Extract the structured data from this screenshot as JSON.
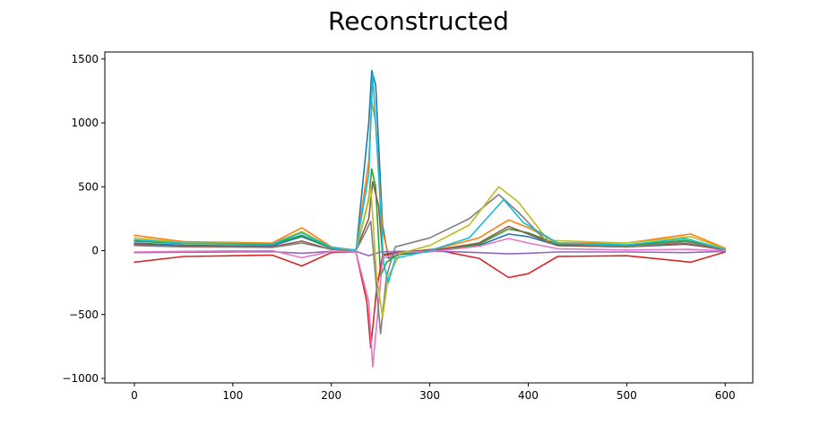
{
  "chart_data": {
    "type": "line",
    "title": "Reconstructed",
    "xlabel": "",
    "ylabel": "",
    "xlim": [
      -30,
      628
    ],
    "ylim": [
      -1035,
      1555
    ],
    "xticks": [
      0,
      100,
      200,
      300,
      400,
      500,
      600
    ],
    "yticks": [
      -1000,
      -500,
      0,
      500,
      1000,
      1500
    ],
    "xtick_labels": [
      "0",
      "100",
      "200",
      "300",
      "400",
      "500",
      "600"
    ],
    "ytick_labels": [
      "−1000",
      "−500",
      "0",
      "500",
      "1000",
      "1500"
    ],
    "grid": false,
    "legend": "none",
    "series": [
      {
        "color": "#1f77b4",
        "points": [
          [
            0,
            60
          ],
          [
            50,
            42
          ],
          [
            100,
            38
          ],
          [
            140,
            38
          ],
          [
            170,
            110
          ],
          [
            200,
            20
          ],
          [
            225,
            -10
          ],
          [
            238,
            1000
          ],
          [
            241,
            1410
          ],
          [
            245,
            1300
          ],
          [
            252,
            200
          ],
          [
            258,
            -60
          ],
          [
            270,
            -30
          ],
          [
            310,
            0
          ],
          [
            350,
            40
          ],
          [
            380,
            130
          ],
          [
            400,
            110
          ],
          [
            430,
            40
          ],
          [
            500,
            30
          ],
          [
            560,
            50
          ],
          [
            600,
            10
          ]
        ]
      },
      {
        "color": "#ff7f0e",
        "points": [
          [
            0,
            120
          ],
          [
            50,
            70
          ],
          [
            100,
            65
          ],
          [
            140,
            60
          ],
          [
            170,
            180
          ],
          [
            200,
            30
          ],
          [
            225,
            0
          ],
          [
            238,
            700
          ],
          [
            241,
            1170
          ],
          [
            245,
            1000
          ],
          [
            252,
            150
          ],
          [
            258,
            -30
          ],
          [
            270,
            -20
          ],
          [
            310,
            20
          ],
          [
            350,
            100
          ],
          [
            380,
            240
          ],
          [
            400,
            180
          ],
          [
            430,
            60
          ],
          [
            500,
            60
          ],
          [
            565,
            130
          ],
          [
            600,
            20
          ]
        ]
      },
      {
        "color": "#2ca02c",
        "points": [
          [
            0,
            75
          ],
          [
            50,
            55
          ],
          [
            100,
            52
          ],
          [
            140,
            50
          ],
          [
            170,
            120
          ],
          [
            200,
            20
          ],
          [
            225,
            0
          ],
          [
            238,
            400
          ],
          [
            241,
            640
          ],
          [
            245,
            500
          ],
          [
            250,
            -200
          ],
          [
            256,
            -90
          ],
          [
            270,
            -20
          ],
          [
            310,
            0
          ],
          [
            350,
            50
          ],
          [
            380,
            170
          ],
          [
            400,
            140
          ],
          [
            430,
            50
          ],
          [
            500,
            40
          ],
          [
            560,
            80
          ],
          [
            600,
            10
          ]
        ]
      },
      {
        "color": "#d62728",
        "points": [
          [
            0,
            -90
          ],
          [
            50,
            -45
          ],
          [
            100,
            -40
          ],
          [
            140,
            -35
          ],
          [
            170,
            -120
          ],
          [
            200,
            -15
          ],
          [
            225,
            -10
          ],
          [
            236,
            -400
          ],
          [
            240,
            -760
          ],
          [
            246,
            -300
          ],
          [
            252,
            -40
          ],
          [
            270,
            -10
          ],
          [
            310,
            0
          ],
          [
            350,
            -60
          ],
          [
            380,
            -210
          ],
          [
            400,
            -180
          ],
          [
            430,
            -45
          ],
          [
            500,
            -40
          ],
          [
            565,
            -90
          ],
          [
            600,
            -10
          ]
        ]
      },
      {
        "color": "#9467bd",
        "points": [
          [
            0,
            -15
          ],
          [
            50,
            -12
          ],
          [
            100,
            -10
          ],
          [
            140,
            -8
          ],
          [
            170,
            -20
          ],
          [
            200,
            -5
          ],
          [
            225,
            -5
          ],
          [
            238,
            -40
          ],
          [
            242,
            -30
          ],
          [
            250,
            -10
          ],
          [
            270,
            -5
          ],
          [
            310,
            -5
          ],
          [
            350,
            -15
          ],
          [
            380,
            -25
          ],
          [
            400,
            -20
          ],
          [
            430,
            -10
          ],
          [
            500,
            -10
          ],
          [
            560,
            -15
          ],
          [
            600,
            -5
          ]
        ]
      },
      {
        "color": "#8c564b",
        "points": [
          [
            0,
            50
          ],
          [
            50,
            35
          ],
          [
            100,
            32
          ],
          [
            140,
            30
          ],
          [
            170,
            75
          ],
          [
            200,
            10
          ],
          [
            225,
            5
          ],
          [
            238,
            250
          ],
          [
            242,
            540
          ],
          [
            248,
            350
          ],
          [
            252,
            -30
          ],
          [
            270,
            -10
          ],
          [
            310,
            10
          ],
          [
            350,
            60
          ],
          [
            380,
            190
          ],
          [
            400,
            130
          ],
          [
            430,
            40
          ],
          [
            500,
            30
          ],
          [
            560,
            55
          ],
          [
            600,
            5
          ]
        ]
      },
      {
        "color": "#e377c2",
        "points": [
          [
            0,
            -10
          ],
          [
            50,
            -5
          ],
          [
            100,
            -2
          ],
          [
            140,
            0
          ],
          [
            170,
            -55
          ],
          [
            200,
            -5
          ],
          [
            225,
            -10
          ],
          [
            238,
            -400
          ],
          [
            242,
            -910
          ],
          [
            247,
            -500
          ],
          [
            252,
            -60
          ],
          [
            270,
            -15
          ],
          [
            310,
            0
          ],
          [
            350,
            35
          ],
          [
            380,
            95
          ],
          [
            400,
            60
          ],
          [
            430,
            15
          ],
          [
            500,
            5
          ],
          [
            560,
            10
          ],
          [
            600,
            0
          ]
        ]
      },
      {
        "color": "#7f7f7f",
        "points": [
          [
            0,
            40
          ],
          [
            50,
            30
          ],
          [
            100,
            28
          ],
          [
            140,
            25
          ],
          [
            170,
            60
          ],
          [
            200,
            10
          ],
          [
            225,
            0
          ],
          [
            235,
            150
          ],
          [
            240,
            230
          ],
          [
            246,
            -300
          ],
          [
            250,
            -650
          ],
          [
            256,
            -200
          ],
          [
            265,
            30
          ],
          [
            300,
            100
          ],
          [
            340,
            250
          ],
          [
            370,
            440
          ],
          [
            390,
            300
          ],
          [
            420,
            60
          ],
          [
            500,
            30
          ],
          [
            560,
            70
          ],
          [
            600,
            10
          ]
        ]
      },
      {
        "color": "#bcbd22",
        "points": [
          [
            0,
            100
          ],
          [
            50,
            62
          ],
          [
            100,
            58
          ],
          [
            140,
            55
          ],
          [
            170,
            150
          ],
          [
            200,
            25
          ],
          [
            225,
            0
          ],
          [
            235,
            300
          ],
          [
            240,
            500
          ],
          [
            246,
            -200
          ],
          [
            252,
            -520
          ],
          [
            258,
            -200
          ],
          [
            270,
            -20
          ],
          [
            300,
            40
          ],
          [
            340,
            200
          ],
          [
            370,
            500
          ],
          [
            390,
            380
          ],
          [
            420,
            80
          ],
          [
            500,
            60
          ],
          [
            565,
            110
          ],
          [
            600,
            15
          ]
        ]
      },
      {
        "color": "#17becf",
        "points": [
          [
            0,
            85
          ],
          [
            50,
            58
          ],
          [
            100,
            55
          ],
          [
            140,
            52
          ],
          [
            170,
            140
          ],
          [
            200,
            25
          ],
          [
            225,
            5
          ],
          [
            238,
            600
          ],
          [
            242,
            1380
          ],
          [
            248,
            600
          ],
          [
            253,
            -100
          ],
          [
            258,
            -250
          ],
          [
            265,
            -60
          ],
          [
            300,
            0
          ],
          [
            340,
            100
          ],
          [
            375,
            400
          ],
          [
            395,
            220
          ],
          [
            430,
            60
          ],
          [
            500,
            45
          ],
          [
            560,
            95
          ],
          [
            600,
            10
          ]
        ]
      }
    ]
  }
}
